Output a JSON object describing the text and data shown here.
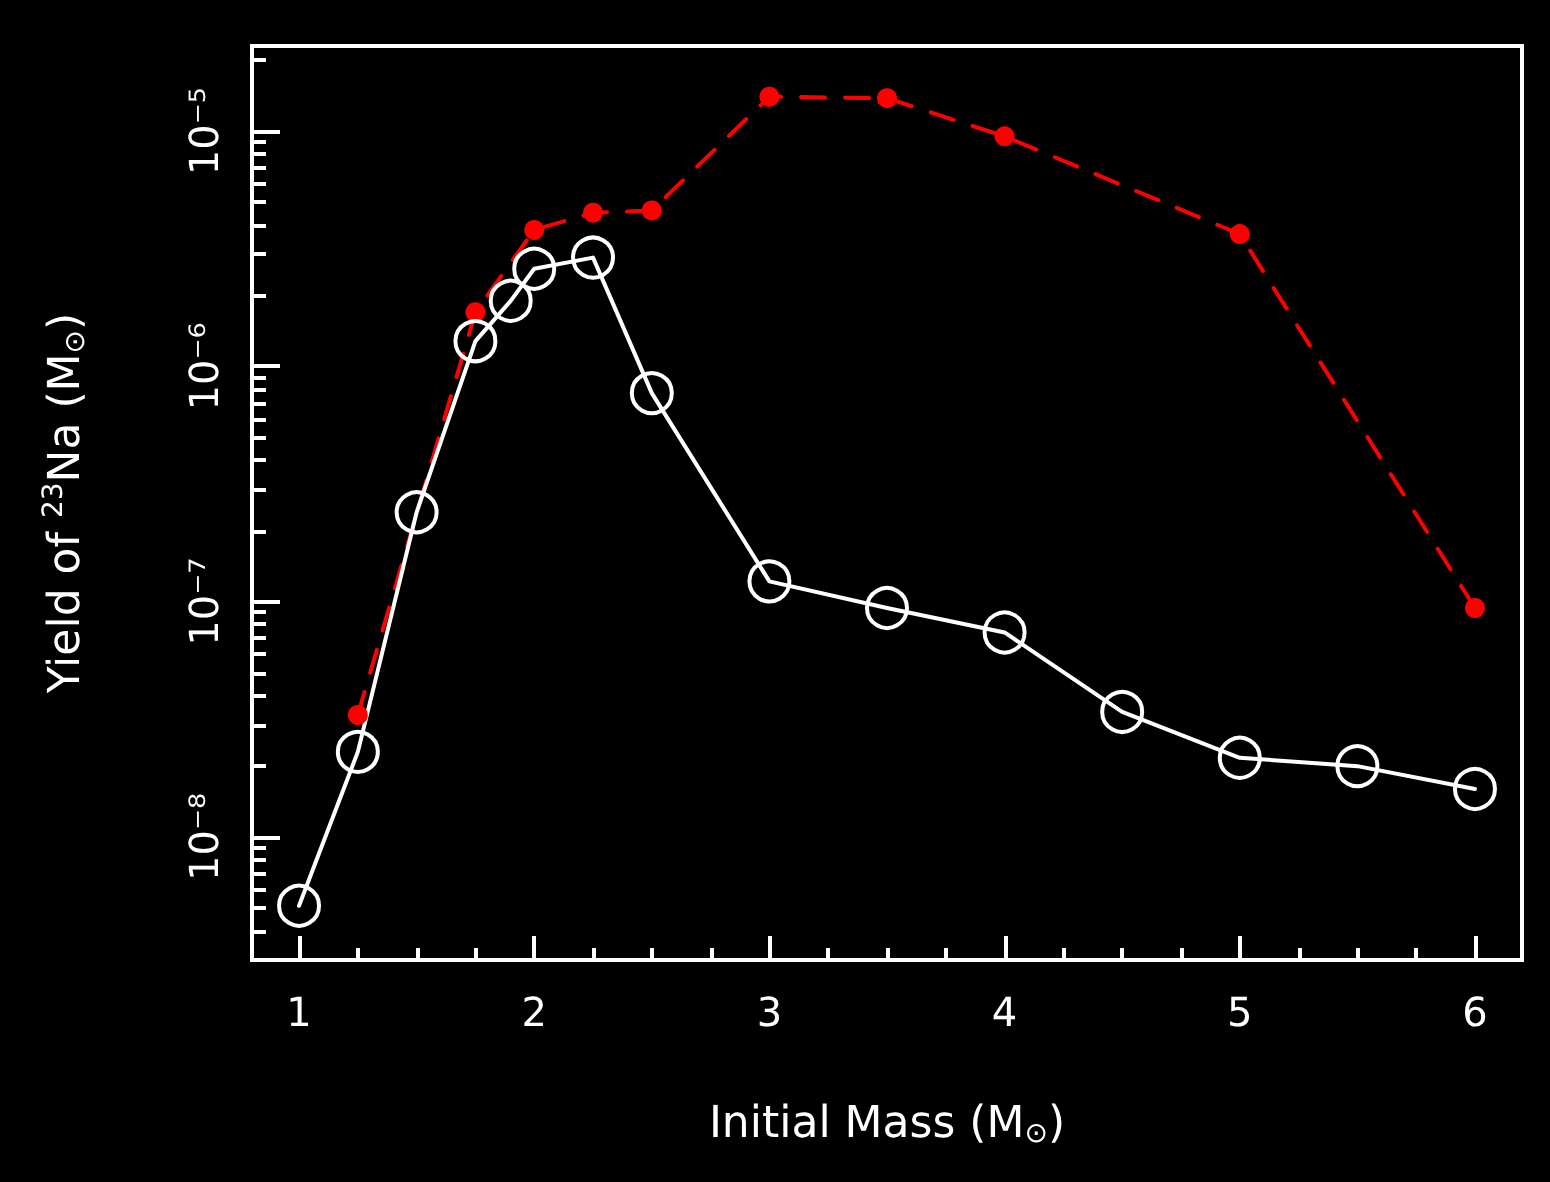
{
  "chart_data": {
    "type": "line",
    "xlabel": "Initial Mass (M$_{⊙}$)",
    "ylabel": "Yield of $^{23}$Na (M$_{⊙}$)",
    "xlim": [
      0.8,
      6.2
    ],
    "xticks": [
      1,
      2,
      3,
      4,
      5,
      6
    ],
    "ylim": [
      3e-09,
      2.3e-05
    ],
    "yticks": [
      {
        "value": 1e-08,
        "label": "10⁻⁸"
      },
      {
        "value": 1e-07,
        "label": "10⁻⁷"
      },
      {
        "value": 1e-06,
        "label": "10⁻⁶"
      },
      {
        "value": 1e-05,
        "label": "10⁻⁵"
      }
    ],
    "log": "y",
    "grid": false,
    "series": [
      {
        "color": "#ff0000",
        "line_style": "dashed",
        "marker": "circle",
        "x": [
          1.25,
          1.75,
          2,
          2.25,
          2.5,
          3,
          3.5,
          4,
          5,
          6
        ],
        "values": [
          3.3e-08,
          1.7e-06,
          3.8e-06,
          4.5e-06,
          4.6e-06,
          1.4e-05,
          1.38e-05,
          9.5e-06,
          3.65e-06,
          9.4e-08
        ]
      },
      {
        "color": "#ffffff",
        "line_style": "solid",
        "marker": "circle",
        "x": [
          1,
          1.25,
          1.5,
          1.75,
          1.9,
          2,
          2.25,
          2.5,
          3,
          3.5,
          4,
          4.5,
          5,
          5.5,
          6
        ],
        "values": [
          5.1e-09,
          2.3e-08,
          2.4e-07,
          1.28e-06,
          1.9e-06,
          2.6e-06,
          2.9e-06,
          7.7e-07,
          1.22e-07,
          9.4e-08,
          7.4e-08,
          3.4e-08,
          2.17e-08,
          2e-08,
          1.6e-08
        ]
      }
    ]
  }
}
